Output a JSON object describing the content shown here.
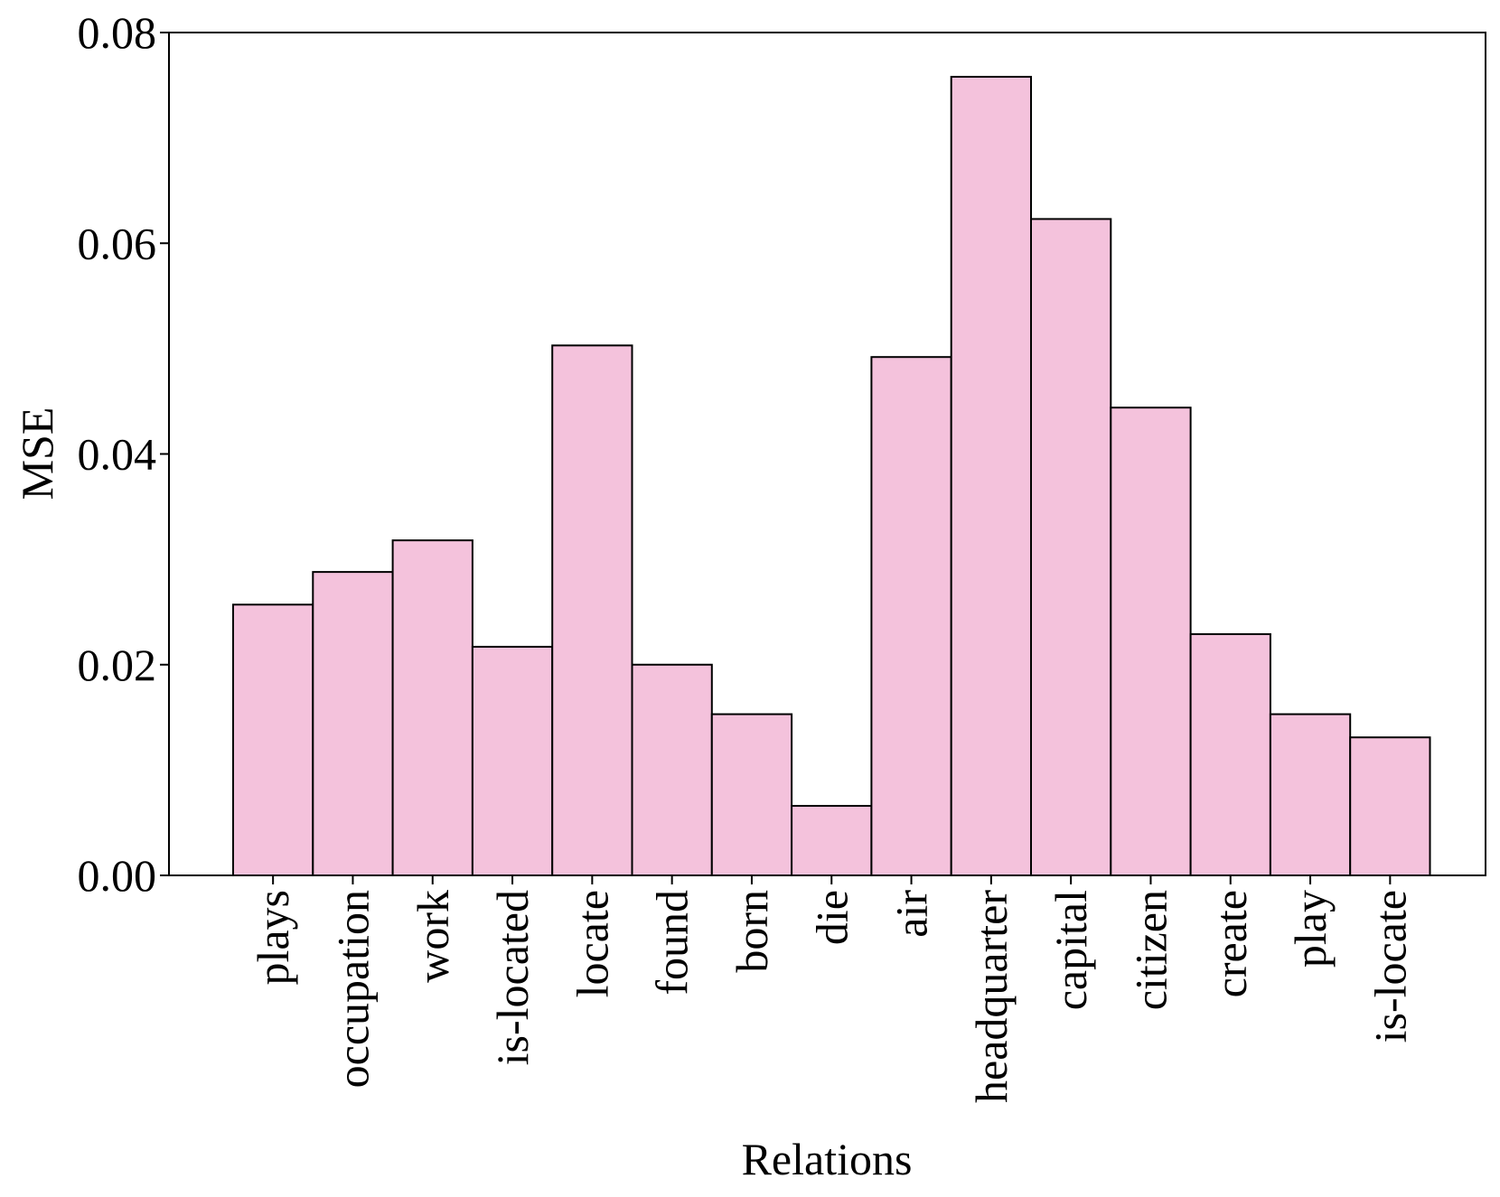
{
  "chart_data": {
    "type": "bar",
    "title": "",
    "xlabel": "Relations",
    "ylabel": "MSE",
    "categories": [
      "plays",
      "occupation",
      "work",
      "is-located",
      "locate",
      "found",
      "born",
      "die",
      "air",
      "headquarter",
      "capital",
      "citizen",
      "create",
      "play",
      "is-locate"
    ],
    "values": [
      0.0257,
      0.0288,
      0.0318,
      0.0217,
      0.0503,
      0.02,
      0.0153,
      0.0066,
      0.0492,
      0.0758,
      0.0623,
      0.0444,
      0.0229,
      0.0153,
      0.0131
    ],
    "ylim": [
      0,
      0.08
    ],
    "yticks": [
      "0.00",
      "0.02",
      "0.04",
      "0.06",
      "0.08"
    ],
    "bar_color": "#f4c2dc",
    "edge_color": "#000000",
    "grid": false,
    "legend": "none"
  }
}
